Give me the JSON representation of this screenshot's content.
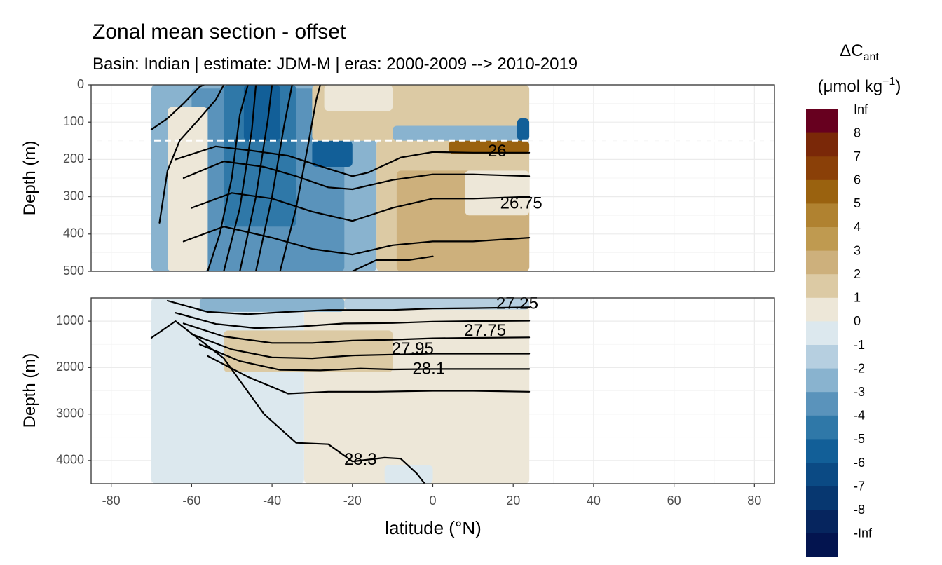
{
  "chart_data": {
    "type": "heatmap",
    "title": "Zonal mean section - offset",
    "subtitle": "Basin: Indian | estimate: JDM-M | eras: 2000-2009 --> 2010-2019",
    "xlabel": "latitude (°N)",
    "ylabel": "Depth (m)",
    "xlim": [
      -85,
      85
    ],
    "x_ticks": [
      "-80",
      "-60",
      "-40",
      "-20",
      "0",
      "20",
      "40",
      "60",
      "80"
    ],
    "x_tick_values": [
      -80,
      -60,
      -40,
      -20,
      0,
      20,
      40,
      60,
      80
    ],
    "panels": [
      {
        "name": "upper",
        "ylim": [
          0,
          500
        ],
        "y_ticks": [
          "0",
          "100",
          "200",
          "300",
          "400",
          "500"
        ],
        "y_tick_values": [
          0,
          100,
          200,
          300,
          400,
          500
        ],
        "reference_depth": 150
      },
      {
        "name": "lower",
        "ylim": [
          500,
          4500
        ],
        "y_ticks": [
          "1000",
          "2000",
          "3000",
          "4000"
        ],
        "y_tick_values": [
          1000,
          2000,
          3000,
          4000
        ]
      }
    ],
    "data_lat_range": [
      -70,
      24
    ],
    "legend": {
      "title_main": "ΔC",
      "title_sub": "ant",
      "unit_pre": "(μmol kg",
      "unit_sup": "−1",
      "unit_post": ")",
      "labels": [
        "Inf",
        "8",
        "7",
        "6",
        "5",
        "4",
        "3",
        "2",
        "1",
        "0",
        "-1",
        "-2",
        "-3",
        "-4",
        "-5",
        "-6",
        "-7",
        "-8",
        "-Inf"
      ],
      "colors": [
        "#67001f",
        "#7a2808",
        "#8a4008",
        "#9a620f",
        "#b08230",
        "#bf9a50",
        "#cdb07c",
        "#dccaa4",
        "#ede7d8",
        "#dce8ee",
        "#b6cfe0",
        "#89b3cf",
        "#5a93bb",
        "#2f78a8",
        "#125f98",
        "#0b4a84",
        "#073770",
        "#06255e",
        "#03144f"
      ]
    },
    "fields": [
      {
        "panel": "upper",
        "level": "0",
        "lat_start": -70,
        "lat_end": 24,
        "d_top": 0,
        "d_bot": 500
      },
      {
        "panel": "upper",
        "level": "-2",
        "lat_start": -70,
        "lat_end": -14,
        "d_top": 0,
        "d_bot": 500
      },
      {
        "panel": "upper",
        "level": "-3",
        "lat_start": -60,
        "lat_end": -22,
        "d_top": 10,
        "d_bot": 500
      },
      {
        "panel": "upper",
        "level": "-4",
        "lat_start": -52,
        "lat_end": -34,
        "d_top": 0,
        "d_bot": 380
      },
      {
        "panel": "upper",
        "level": "-5",
        "lat_start": -47,
        "lat_end": -38,
        "d_top": 0,
        "d_bot": 150
      },
      {
        "panel": "upper",
        "level": "1",
        "lat_start": -66,
        "lat_end": -56,
        "d_top": 60,
        "d_bot": 500
      },
      {
        "panel": "upper",
        "level": "-5",
        "lat_start": -30,
        "lat_end": -20,
        "d_top": 150,
        "d_bot": 220
      },
      {
        "panel": "upper",
        "level": "2",
        "lat_start": -30,
        "lat_end": 24,
        "d_top": 0,
        "d_bot": 150
      },
      {
        "panel": "upper",
        "level": "1",
        "lat_start": -27,
        "lat_end": -10,
        "d_top": 0,
        "d_bot": 70
      },
      {
        "panel": "upper",
        "level": "-2",
        "lat_start": -10,
        "lat_end": 24,
        "d_top": 110,
        "d_bot": 150
      },
      {
        "panel": "upper",
        "level": "-5",
        "lat_start": 21,
        "lat_end": 24,
        "d_top": 90,
        "d_bot": 150
      },
      {
        "panel": "upper",
        "level": "2",
        "lat_start": -14,
        "lat_end": 24,
        "d_top": 150,
        "d_bot": 500
      },
      {
        "panel": "upper",
        "level": "3",
        "lat_start": -9,
        "lat_end": 24,
        "d_top": 230,
        "d_bot": 500
      },
      {
        "panel": "upper",
        "level": "1",
        "lat_start": 8,
        "lat_end": 24,
        "d_top": 230,
        "d_bot": 350
      },
      {
        "panel": "upper",
        "level": "6",
        "lat_start": 4,
        "lat_end": 24,
        "d_top": 150,
        "d_bot": 185
      },
      {
        "panel": "lower",
        "level": "0",
        "lat_start": -70,
        "lat_end": -32,
        "d_top": 500,
        "d_bot": 4500
      },
      {
        "panel": "lower",
        "level": "1",
        "lat_start": -32,
        "lat_end": 24,
        "d_top": 500,
        "d_bot": 4500
      },
      {
        "panel": "lower",
        "level": "-2",
        "lat_start": -58,
        "lat_end": -22,
        "d_top": 500,
        "d_bot": 800
      },
      {
        "panel": "lower",
        "level": "-1",
        "lat_start": -22,
        "lat_end": 24,
        "d_top": 500,
        "d_bot": 750
      },
      {
        "panel": "lower",
        "level": "2",
        "lat_start": -52,
        "lat_end": -10,
        "d_top": 1200,
        "d_bot": 2100
      },
      {
        "panel": "lower",
        "level": "0",
        "lat_start": -12,
        "lat_end": 0,
        "d_top": 4100,
        "d_bot": 4500
      }
    ],
    "upper_contours": [
      {
        "level": "26",
        "points": [
          [
            -64,
            200
          ],
          [
            -54,
            165
          ],
          [
            -46,
            175
          ],
          [
            -36,
            190
          ],
          [
            -26,
            225
          ],
          [
            -20,
            245
          ],
          [
            -16,
            235
          ],
          [
            -8,
            195
          ],
          [
            0,
            180
          ],
          [
            10,
            182
          ],
          [
            24,
            182
          ]
        ]
      },
      {
        "level": "",
        "points": [
          [
            -62,
            250
          ],
          [
            -52,
            205
          ],
          [
            -42,
            220
          ],
          [
            -34,
            245
          ],
          [
            -26,
            275
          ],
          [
            -20,
            280
          ],
          [
            -10,
            255
          ],
          [
            0,
            240
          ],
          [
            10,
            240
          ],
          [
            24,
            245
          ]
        ]
      },
      {
        "level": "26.75",
        "points": [
          [
            -60,
            330
          ],
          [
            -50,
            290
          ],
          [
            -40,
            305
          ],
          [
            -30,
            340
          ],
          [
            -20,
            365
          ],
          [
            -10,
            330
          ],
          [
            0,
            305
          ],
          [
            10,
            305
          ],
          [
            24,
            300
          ]
        ]
      },
      {
        "level": "",
        "points": [
          [
            -62,
            420
          ],
          [
            -52,
            380
          ],
          [
            -40,
            410
          ],
          [
            -30,
            440
          ],
          [
            -20,
            455
          ],
          [
            -10,
            430
          ],
          [
            0,
            420
          ],
          [
            10,
            420
          ],
          [
            24,
            410
          ]
        ]
      }
    ],
    "lower_contours": [
      {
        "level": "27.25",
        "points": [
          [
            -66,
            560
          ],
          [
            -56,
            800
          ],
          [
            -46,
            850
          ],
          [
            -36,
            800
          ],
          [
            -26,
            760
          ],
          [
            -10,
            760
          ],
          [
            0,
            730
          ],
          [
            10,
            720
          ],
          [
            24,
            700
          ]
        ]
      },
      {
        "level": "27.75",
        "points": [
          [
            -64,
            820
          ],
          [
            -54,
            1060
          ],
          [
            -44,
            1150
          ],
          [
            -34,
            1120
          ],
          [
            -22,
            1050
          ],
          [
            -10,
            1040
          ],
          [
            0,
            1010
          ],
          [
            10,
            1000
          ],
          [
            24,
            990
          ]
        ]
      },
      {
        "level": "27.95",
        "points": [
          [
            -62,
            1050
          ],
          [
            -52,
            1330
          ],
          [
            -40,
            1470
          ],
          [
            -30,
            1470
          ],
          [
            -20,
            1420
          ],
          [
            -10,
            1400
          ],
          [
            0,
            1370
          ],
          [
            10,
            1360
          ],
          [
            24,
            1350
          ]
        ]
      },
      {
        "level": "28.1",
        "points": [
          [
            -60,
            1280
          ],
          [
            -50,
            1610
          ],
          [
            -40,
            1780
          ],
          [
            -30,
            1800
          ],
          [
            -20,
            1740
          ],
          [
            -10,
            1720
          ],
          [
            0,
            1700
          ],
          [
            10,
            1700
          ],
          [
            24,
            1700
          ]
        ]
      },
      {
        "level": "",
        "points": [
          [
            -58,
            1500
          ],
          [
            -48,
            1860
          ],
          [
            -38,
            2050
          ],
          [
            -28,
            2060
          ],
          [
            -18,
            2020
          ],
          [
            -10,
            2040
          ],
          [
            0,
            2030
          ],
          [
            10,
            2030
          ],
          [
            24,
            2030
          ]
        ]
      },
      {
        "level": "",
        "points": [
          [
            -56,
            1750
          ],
          [
            -46,
            2200
          ],
          [
            -36,
            2560
          ],
          [
            -26,
            2520
          ],
          [
            -14,
            2520
          ],
          [
            0,
            2500
          ],
          [
            10,
            2500
          ],
          [
            24,
            2520
          ]
        ]
      },
      {
        "level": "28.3",
        "points": [
          [
            -70,
            1360
          ],
          [
            -64,
            1000
          ],
          [
            -52,
            1800
          ],
          [
            -42,
            3000
          ],
          [
            -34,
            3620
          ],
          [
            -26,
            3650
          ],
          [
            -20,
            4020
          ],
          [
            -12,
            3940
          ],
          [
            -8,
            3960
          ],
          [
            -4,
            4280
          ],
          [
            -2,
            4500
          ]
        ]
      }
    ],
    "upper_contour_labels": [
      {
        "text": "26",
        "lat": 16,
        "depth": 180
      },
      {
        "text": "26.75",
        "lat": 22,
        "depth": 320
      }
    ],
    "lower_contour_labels": [
      {
        "text": "27.25",
        "lat": 21,
        "depth": 640
      },
      {
        "text": "27.75",
        "lat": 13,
        "depth": 1220
      },
      {
        "text": "27.95",
        "lat": -5,
        "depth": 1610
      },
      {
        "text": "28.1",
        "lat": -1,
        "depth": 2040
      },
      {
        "text": "28.3",
        "lat": -18,
        "depth": 4000
      }
    ],
    "steep_lines": [
      {
        "points": [
          [
            -70,
            120
          ],
          [
            -66,
            90
          ],
          [
            -62,
            50
          ],
          [
            -58,
            5
          ],
          [
            -57,
            0
          ]
        ]
      },
      {
        "points": [
          [
            -68,
            370
          ],
          [
            -66,
            230
          ],
          [
            -63,
            150
          ],
          [
            -58,
            90
          ],
          [
            -54,
            40
          ],
          [
            -52,
            0
          ]
        ]
      },
      {
        "points": [
          [
            -56,
            500
          ],
          [
            -53,
            400
          ],
          [
            -50,
            250
          ],
          [
            -48,
            80
          ],
          [
            -46,
            0
          ]
        ]
      },
      {
        "points": [
          [
            -52,
            500
          ],
          [
            -48,
            330
          ],
          [
            -45,
            120
          ],
          [
            -44,
            0
          ]
        ]
      },
      {
        "points": [
          [
            -48,
            500
          ],
          [
            -44,
            300
          ],
          [
            -41,
            90
          ],
          [
            -40,
            0
          ]
        ]
      },
      {
        "points": [
          [
            -44,
            500
          ],
          [
            -40,
            300
          ],
          [
            -37,
            110
          ],
          [
            -35,
            0
          ]
        ]
      },
      {
        "points": [
          [
            -38,
            500
          ],
          [
            -34,
            330
          ],
          [
            -31,
            160
          ],
          [
            -29,
            40
          ],
          [
            -28,
            0
          ]
        ]
      },
      {
        "points": [
          [
            -20,
            500
          ],
          [
            -14,
            470
          ],
          [
            -6,
            470
          ],
          [
            0,
            460
          ]
        ]
      }
    ]
  }
}
